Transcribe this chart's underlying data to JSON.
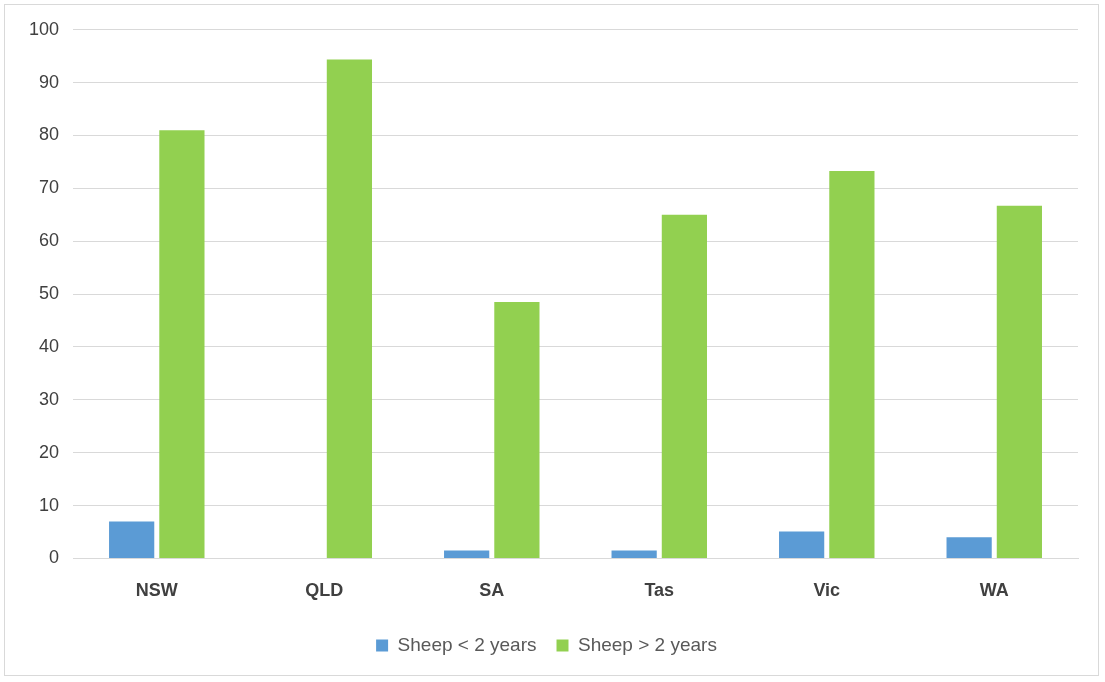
{
  "chart_data": {
    "type": "bar",
    "categories": [
      "NSW",
      "QLD",
      "SA",
      "Tas",
      "Vic",
      "WA"
    ],
    "series": [
      {
        "name": "Sheep < 2 years",
        "color": "#5b9bd5",
        "values": [
          7.0,
          0,
          1.5,
          1.5,
          5.1,
          4.0
        ]
      },
      {
        "name": "Sheep > 2 years",
        "color": "#92d050",
        "values": [
          81,
          94.4,
          48.5,
          65,
          73.3,
          66.7
        ]
      }
    ],
    "ylim": [
      0,
      100
    ],
    "yticks": [
      0,
      10,
      20,
      30,
      40,
      50,
      60,
      70,
      80,
      90,
      100
    ],
    "grid": "y",
    "legend": "bottom"
  }
}
